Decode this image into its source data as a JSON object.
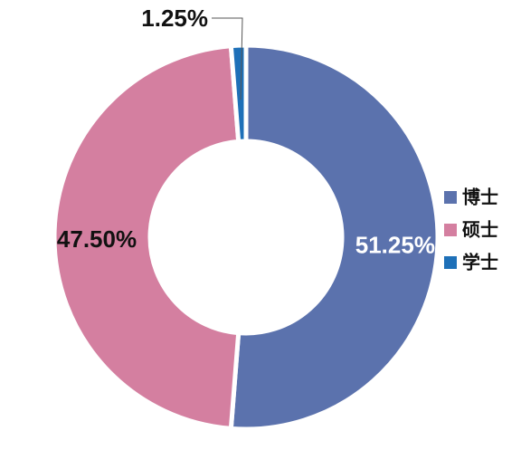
{
  "chart_data": {
    "type": "donut",
    "categories": [
      "博士",
      "硕士",
      "学士"
    ],
    "values": [
      51.25,
      47.5,
      1.25
    ],
    "value_labels": [
      "51.25%",
      "47.50%",
      "1.25%"
    ],
    "colors": [
      "#5b72ad",
      "#d47fa0",
      "#1e70b8"
    ],
    "legend": "right"
  }
}
